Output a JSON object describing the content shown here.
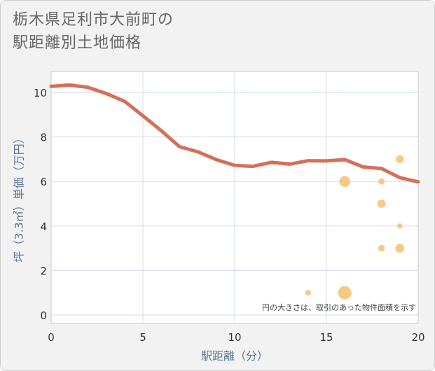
{
  "chart_data": {
    "type": "line+scatter",
    "title": "栃木県足利市大前町の\n駅距離別土地価格",
    "xlabel": "駅距離（分）",
    "ylabel": "坪（3.3㎡）単価（万円）",
    "xlim": [
      0,
      20
    ],
    "ylim": [
      0,
      11
    ],
    "xticks": [
      0,
      5,
      10,
      15,
      20
    ],
    "yticks": [
      0,
      2,
      4,
      6,
      8,
      10
    ],
    "grid": true,
    "note": "円の大きさは、取引のあった物件面積を示す",
    "colors": {
      "line": "#d4705a",
      "bubble": "#f5c070"
    },
    "line": {
      "x": [
        0,
        1,
        2,
        3,
        4,
        5,
        6,
        7,
        8,
        9,
        10,
        11,
        12,
        13,
        14,
        15,
        16,
        17,
        18,
        19,
        20
      ],
      "y": [
        10.27,
        10.33,
        10.23,
        9.95,
        9.6,
        8.95,
        8.28,
        7.56,
        7.33,
        6.98,
        6.72,
        6.68,
        6.86,
        6.78,
        6.93,
        6.92,
        6.98,
        6.65,
        6.58,
        6.17,
        5.98
      ]
    },
    "bubbles": [
      {
        "x": 14,
        "y": 1.0,
        "size": 1
      },
      {
        "x": 16,
        "y": 6.0,
        "size": 4
      },
      {
        "x": 16,
        "y": 1.0,
        "size": 6
      },
      {
        "x": 18,
        "y": 6.0,
        "size": 1.2
      },
      {
        "x": 18,
        "y": 5.0,
        "size": 2.2
      },
      {
        "x": 18,
        "y": 3.0,
        "size": 1.4
      },
      {
        "x": 19,
        "y": 7.0,
        "size": 2
      },
      {
        "x": 19,
        "y": 4.0,
        "size": 0.8
      },
      {
        "x": 19,
        "y": 3.0,
        "size": 2.6
      }
    ]
  }
}
